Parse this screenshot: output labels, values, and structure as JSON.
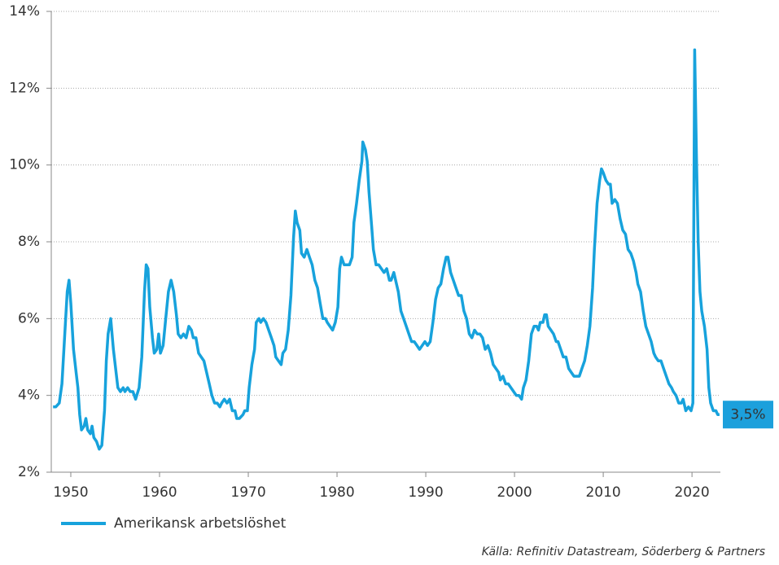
{
  "chart_data": {
    "type": "line",
    "source": "Källa: Refinitiv Datastream, Söderberg & Partners",
    "xlim": [
      1947.8,
      2023.2
    ],
    "xticks": [
      1950,
      1960,
      1970,
      1980,
      1990,
      2000,
      2010,
      2020
    ],
    "ylim": [
      2,
      14
    ],
    "yticks": [
      {
        "value": 2,
        "label": "2%"
      },
      {
        "value": 4,
        "label": "4%"
      },
      {
        "value": 6,
        "label": "6%"
      },
      {
        "value": 8,
        "label": "8%"
      },
      {
        "value": 10,
        "label": "10%"
      },
      {
        "value": 12,
        "label": "12%"
      },
      {
        "value": 14,
        "label": "14%"
      }
    ],
    "grid": true,
    "legend": "bottom-left",
    "annotations": [
      {
        "text": "3,5%",
        "x": 2023.1,
        "y": 3.5,
        "color": "#1ca0dc"
      }
    ],
    "x": [
      1948.0,
      1948.3,
      1948.7,
      1949.0,
      1949.4,
      1949.6,
      1949.8,
      1950.0,
      1950.3,
      1950.6,
      1950.8,
      1951.0,
      1951.2,
      1951.5,
      1951.7,
      1951.9,
      1952.2,
      1952.4,
      1952.6,
      1952.9,
      1953.2,
      1953.5,
      1953.8,
      1954.0,
      1954.2,
      1954.5,
      1954.8,
      1955.1,
      1955.3,
      1955.6,
      1955.9,
      1956.1,
      1956.4,
      1956.7,
      1957.0,
      1957.3,
      1957.7,
      1958.0,
      1958.3,
      1958.5,
      1958.7,
      1958.9,
      1959.2,
      1959.4,
      1959.7,
      1959.9,
      1960.1,
      1960.4,
      1960.7,
      1961.0,
      1961.3,
      1961.6,
      1961.9,
      1962.1,
      1962.4,
      1962.7,
      1963.0,
      1963.3,
      1963.6,
      1963.8,
      1964.1,
      1964.4,
      1964.7,
      1965.0,
      1965.3,
      1965.6,
      1965.9,
      1966.2,
      1966.5,
      1966.8,
      1967.0,
      1967.3,
      1967.6,
      1967.9,
      1968.2,
      1968.5,
      1968.7,
      1969.0,
      1969.4,
      1969.6,
      1969.9,
      1970.1,
      1970.4,
      1970.7,
      1970.9,
      1971.2,
      1971.4,
      1971.7,
      1972.0,
      1972.3,
      1972.6,
      1972.9,
      1973.1,
      1973.4,
      1973.7,
      1973.9,
      1974.2,
      1974.5,
      1974.8,
      1975.1,
      1975.3,
      1975.5,
      1975.8,
      1976.0,
      1976.3,
      1976.6,
      1976.9,
      1977.2,
      1977.5,
      1977.8,
      1978.1,
      1978.4,
      1978.7,
      1978.9,
      1979.2,
      1979.5,
      1979.8,
      1980.1,
      1980.3,
      1980.5,
      1980.8,
      1981.1,
      1981.4,
      1981.7,
      1981.9,
      1982.2,
      1982.5,
      1982.8,
      1982.9,
      1983.2,
      1983.4,
      1983.6,
      1983.9,
      1984.1,
      1984.4,
      1984.7,
      1985.0,
      1985.3,
      1985.6,
      1985.9,
      1986.1,
      1986.4,
      1986.7,
      1986.9,
      1987.2,
      1987.5,
      1987.8,
      1988.1,
      1988.4,
      1988.7,
      1989.0,
      1989.3,
      1989.6,
      1989.9,
      1990.2,
      1990.5,
      1990.8,
      1991.1,
      1991.4,
      1991.7,
      1992.0,
      1992.3,
      1992.5,
      1992.8,
      1993.1,
      1993.4,
      1993.7,
      1994.0,
      1994.3,
      1994.6,
      1994.9,
      1995.2,
      1995.5,
      1995.8,
      1996.1,
      1996.4,
      1996.7,
      1997.0,
      1997.3,
      1997.6,
      1997.9,
      1998.2,
      1998.4,
      1998.7,
      1999.0,
      1999.3,
      1999.6,
      1999.9,
      2000.2,
      2000.5,
      2000.8,
      2001.0,
      2001.3,
      2001.6,
      2001.9,
      2002.2,
      2002.5,
      2002.7,
      2002.9,
      2003.2,
      2003.4,
      2003.6,
      2003.8,
      2004.1,
      2004.4,
      2004.7,
      2004.9,
      2005.2,
      2005.5,
      2005.8,
      2006.1,
      2006.4,
      2006.7,
      2006.9,
      2007.3,
      2007.6,
      2007.9,
      2008.2,
      2008.5,
      2008.8,
      2009.0,
      2009.3,
      2009.6,
      2009.8,
      2010.0,
      2010.3,
      2010.6,
      2010.8,
      2011.0,
      2011.3,
      2011.6,
      2011.9,
      2012.2,
      2012.5,
      2012.8,
      2013.1,
      2013.4,
      2013.7,
      2013.9,
      2014.2,
      2014.5,
      2014.8,
      2015.1,
      2015.4,
      2015.7,
      2015.9,
      2016.2,
      2016.5,
      2016.8,
      2017.1,
      2017.4,
      2017.7,
      2017.9,
      2018.2,
      2018.5,
      2018.8,
      2019.0,
      2019.3,
      2019.6,
      2019.9,
      2020.1,
      2020.3,
      2020.5,
      2020.7,
      2020.9,
      2021.1,
      2021.4,
      2021.7,
      2021.9,
      2022.1,
      2022.4,
      2022.7,
      2022.9,
      2023.1
    ],
    "series": [
      {
        "name": "Amerikansk arbetslöshet",
        "color": "#17a2dc",
        "values": [
          3.7,
          3.7,
          3.8,
          4.3,
          5.9,
          6.7,
          7.0,
          6.4,
          5.2,
          4.6,
          4.2,
          3.5,
          3.1,
          3.2,
          3.4,
          3.1,
          3.0,
          3.2,
          2.9,
          2.8,
          2.6,
          2.7,
          3.6,
          4.9,
          5.6,
          6.0,
          5.2,
          4.6,
          4.2,
          4.1,
          4.2,
          4.1,
          4.2,
          4.1,
          4.1,
          3.9,
          4.2,
          5.0,
          6.7,
          7.4,
          7.3,
          6.3,
          5.5,
          5.1,
          5.2,
          5.6,
          5.1,
          5.3,
          6.0,
          6.7,
          7.0,
          6.7,
          6.1,
          5.6,
          5.5,
          5.6,
          5.5,
          5.8,
          5.7,
          5.5,
          5.5,
          5.1,
          5.0,
          4.9,
          4.6,
          4.3,
          4.0,
          3.8,
          3.8,
          3.7,
          3.8,
          3.9,
          3.8,
          3.9,
          3.6,
          3.6,
          3.4,
          3.4,
          3.5,
          3.6,
          3.6,
          4.2,
          4.8,
          5.2,
          5.9,
          6.0,
          5.9,
          6.0,
          5.9,
          5.7,
          5.5,
          5.3,
          5.0,
          4.9,
          4.8,
          5.1,
          5.2,
          5.7,
          6.6,
          8.1,
          8.8,
          8.5,
          8.3,
          7.7,
          7.6,
          7.8,
          7.6,
          7.4,
          7.0,
          6.8,
          6.4,
          6.0,
          6.0,
          5.9,
          5.8,
          5.7,
          5.9,
          6.3,
          7.3,
          7.6,
          7.4,
          7.4,
          7.4,
          7.6,
          8.5,
          9.0,
          9.6,
          10.1,
          10.6,
          10.4,
          10.1,
          9.3,
          8.4,
          7.8,
          7.4,
          7.4,
          7.3,
          7.2,
          7.3,
          7.0,
          7.0,
          7.2,
          6.9,
          6.7,
          6.2,
          6.0,
          5.8,
          5.6,
          5.4,
          5.4,
          5.3,
          5.2,
          5.3,
          5.4,
          5.3,
          5.4,
          5.9,
          6.5,
          6.8,
          6.9,
          7.3,
          7.6,
          7.6,
          7.2,
          7.0,
          6.8,
          6.6,
          6.6,
          6.2,
          6.0,
          5.6,
          5.5,
          5.7,
          5.6,
          5.6,
          5.5,
          5.2,
          5.3,
          5.1,
          4.8,
          4.7,
          4.6,
          4.4,
          4.5,
          4.3,
          4.3,
          4.2,
          4.1,
          4.0,
          4.0,
          3.9,
          4.2,
          4.4,
          4.9,
          5.6,
          5.8,
          5.8,
          5.7,
          5.9,
          5.9,
          6.1,
          6.1,
          5.8,
          5.7,
          5.6,
          5.4,
          5.4,
          5.2,
          5.0,
          5.0,
          4.7,
          4.6,
          4.5,
          4.5,
          4.5,
          4.7,
          4.9,
          5.3,
          5.8,
          6.8,
          7.8,
          9.0,
          9.6,
          9.9,
          9.8,
          9.6,
          9.5,
          9.5,
          9.0,
          9.1,
          9.0,
          8.6,
          8.3,
          8.2,
          7.8,
          7.7,
          7.5,
          7.2,
          6.9,
          6.7,
          6.2,
          5.8,
          5.6,
          5.4,
          5.1,
          5.0,
          4.9,
          4.9,
          4.7,
          4.5,
          4.3,
          4.2,
          4.1,
          4.0,
          3.8,
          3.8,
          3.9,
          3.6,
          3.7,
          3.6,
          3.8,
          13.0,
          10.2,
          8.0,
          6.7,
          6.2,
          5.8,
          5.2,
          4.2,
          3.8,
          3.6,
          3.6,
          3.5,
          3.5
        ]
      }
    ]
  }
}
